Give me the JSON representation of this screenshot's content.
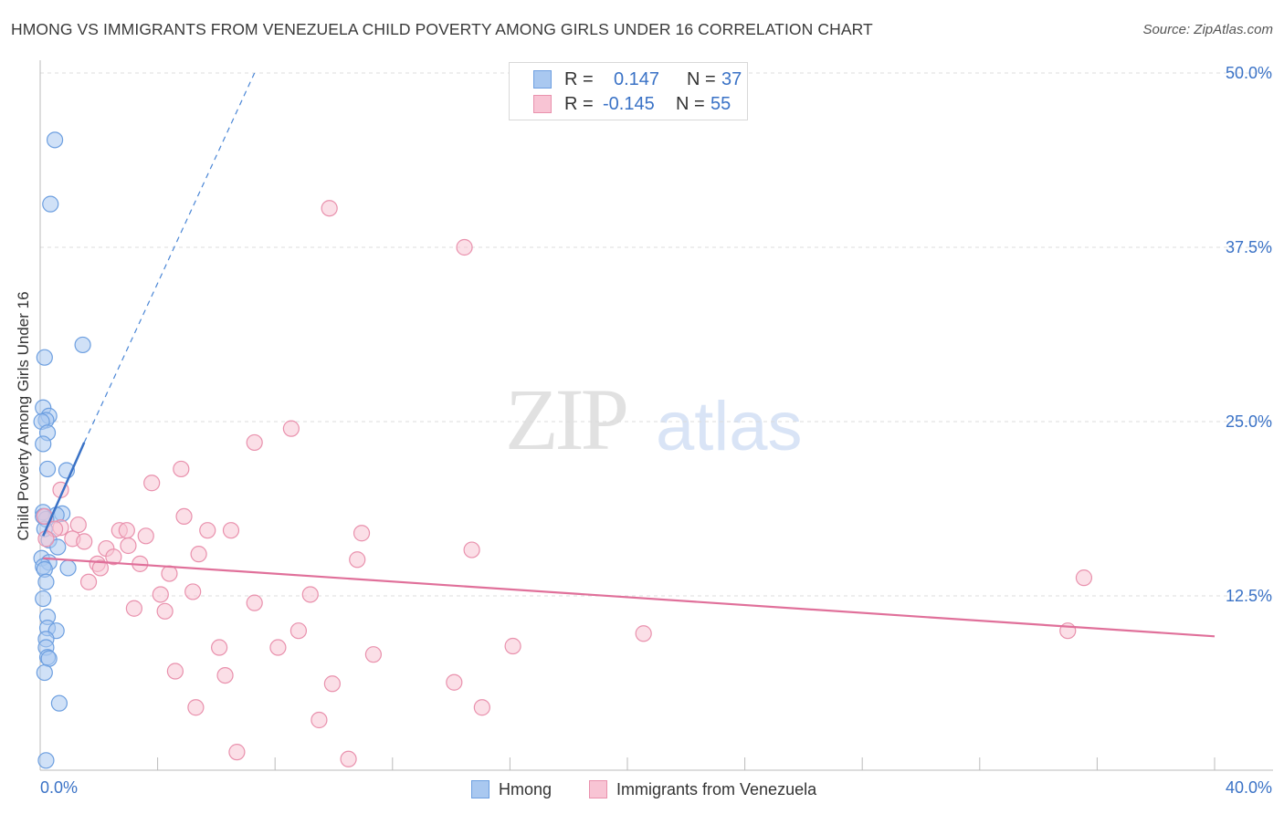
{
  "title": "HMONG VS IMMIGRANTS FROM VENEZUELA CHILD POVERTY AMONG GIRLS UNDER 16 CORRELATION CHART",
  "source": "Source: ZipAtlas.com",
  "legend_top": [
    {
      "r_label": "R =",
      "r_value": "0.147",
      "n_label": "N =",
      "n_value": "37",
      "color": "#a9c8f0",
      "border": "#6d9fe0"
    },
    {
      "r_label": "R =",
      "r_value": "-0.145",
      "n_label": "N =",
      "n_value": "55",
      "color": "#f8c4d4",
      "border": "#e991ad"
    }
  ],
  "watermark": {
    "zip": "ZIP",
    "atlas": "atlas"
  },
  "chart_data": {
    "type": "scatter",
    "title": "HMONG VS IMMIGRANTS FROM VENEZUELA CHILD POVERTY AMONG GIRLS UNDER 16 CORRELATION CHART",
    "xlabel": "",
    "ylabel": "Child Poverty Among Girls Under 16",
    "xlim": [
      0,
      40
    ],
    "ylim": [
      0,
      50
    ],
    "x_tick_labels": [
      "0.0%",
      "40.0%"
    ],
    "y_ticks": [
      12.5,
      25.0,
      37.5,
      50.0
    ],
    "y_tick_labels": [
      "12.5%",
      "25.0%",
      "37.5%",
      "50.0%"
    ],
    "grid": true,
    "legend_position": "bottom-center",
    "series": [
      {
        "name": "Hmong",
        "color": "#6d9fe0",
        "fill": "#a9c8f0",
        "trend": {
          "x": [
            0.1,
            1.5
          ],
          "y": [
            16.8,
            23.5
          ],
          "extended_to": [
            7.3,
            50.0
          ]
        },
        "points": [
          [
            0.5,
            45.2
          ],
          [
            0.35,
            40.6
          ],
          [
            1.45,
            30.5
          ],
          [
            0.15,
            29.6
          ],
          [
            0.1,
            26.0
          ],
          [
            0.3,
            25.4
          ],
          [
            0.2,
            25.1
          ],
          [
            0.05,
            25.0
          ],
          [
            0.25,
            24.2
          ],
          [
            0.1,
            23.4
          ],
          [
            0.25,
            21.6
          ],
          [
            0.9,
            21.5
          ],
          [
            0.1,
            18.5
          ],
          [
            0.75,
            18.4
          ],
          [
            0.55,
            18.3
          ],
          [
            0.2,
            18.0
          ],
          [
            0.15,
            17.3
          ],
          [
            0.3,
            16.5
          ],
          [
            0.6,
            16.0
          ],
          [
            0.05,
            15.2
          ],
          [
            0.3,
            14.9
          ],
          [
            0.1,
            14.6
          ],
          [
            0.15,
            14.4
          ],
          [
            0.95,
            14.5
          ],
          [
            0.2,
            13.5
          ],
          [
            0.1,
            12.3
          ],
          [
            0.25,
            11.0
          ],
          [
            0.25,
            10.2
          ],
          [
            0.55,
            10.0
          ],
          [
            0.2,
            9.4
          ],
          [
            0.2,
            8.8
          ],
          [
            0.25,
            8.1
          ],
          [
            0.3,
            8.0
          ],
          [
            0.15,
            7.0
          ],
          [
            0.65,
            4.8
          ],
          [
            0.2,
            0.7
          ],
          [
            0.1,
            18.2
          ]
        ]
      },
      {
        "name": "Immigrants from Venezuela",
        "color": "#e991ad",
        "fill": "#f8c4d4",
        "trend": {
          "x": [
            0.1,
            40.0
          ],
          "y": [
            15.2,
            9.6
          ]
        },
        "points": [
          [
            9.85,
            40.3
          ],
          [
            14.45,
            37.5
          ],
          [
            8.55,
            24.5
          ],
          [
            7.3,
            23.5
          ],
          [
            4.8,
            21.6
          ],
          [
            3.8,
            20.6
          ],
          [
            0.7,
            20.1
          ],
          [
            4.9,
            18.2
          ],
          [
            0.15,
            18.2
          ],
          [
            0.7,
            17.4
          ],
          [
            1.3,
            17.6
          ],
          [
            0.5,
            17.3
          ],
          [
            2.7,
            17.2
          ],
          [
            2.95,
            17.2
          ],
          [
            5.7,
            17.2
          ],
          [
            6.5,
            17.2
          ],
          [
            10.95,
            17.0
          ],
          [
            3.6,
            16.8
          ],
          [
            1.1,
            16.6
          ],
          [
            1.5,
            16.4
          ],
          [
            0.2,
            16.6
          ],
          [
            3.0,
            16.1
          ],
          [
            2.25,
            15.9
          ],
          [
            14.7,
            15.8
          ],
          [
            5.4,
            15.5
          ],
          [
            2.5,
            15.3
          ],
          [
            10.8,
            15.1
          ],
          [
            1.95,
            14.8
          ],
          [
            3.4,
            14.8
          ],
          [
            2.05,
            14.5
          ],
          [
            4.4,
            14.1
          ],
          [
            1.65,
            13.5
          ],
          [
            5.2,
            12.8
          ],
          [
            4.1,
            12.6
          ],
          [
            9.2,
            12.6
          ],
          [
            7.3,
            12.0
          ],
          [
            3.2,
            11.6
          ],
          [
            4.25,
            11.4
          ],
          [
            35.55,
            13.8
          ],
          [
            8.8,
            10.0
          ],
          [
            35.0,
            10.0
          ],
          [
            20.55,
            9.8
          ],
          [
            6.1,
            8.8
          ],
          [
            8.1,
            8.8
          ],
          [
            16.1,
            8.9
          ],
          [
            11.35,
            8.3
          ],
          [
            4.6,
            7.1
          ],
          [
            6.3,
            6.8
          ],
          [
            9.95,
            6.2
          ],
          [
            14.1,
            6.3
          ],
          [
            5.3,
            4.5
          ],
          [
            15.05,
            4.5
          ],
          [
            9.5,
            3.6
          ],
          [
            6.7,
            1.3
          ],
          [
            10.5,
            0.8
          ]
        ]
      }
    ]
  }
}
